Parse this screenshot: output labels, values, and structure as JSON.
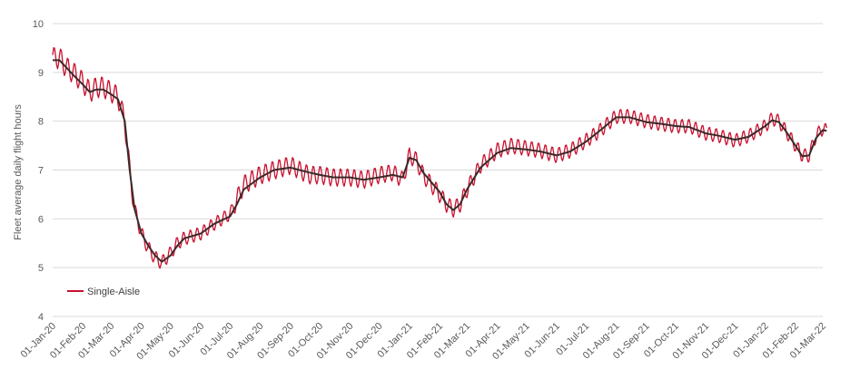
{
  "chart_data": {
    "type": "line",
    "ylabel": "Fleet average daily flight hours",
    "ylim": [
      4,
      10
    ],
    "yticks": [
      4,
      5,
      6,
      7,
      8,
      9,
      10
    ],
    "grid": "horizontal",
    "legend": {
      "position": "bottom-left"
    },
    "x_tick_labels": [
      "01-Jan-20",
      "01-Feb-20",
      "01-Mar-20",
      "01-Apr-20",
      "01-May-20",
      "01-Jun-20",
      "01-Jul-20",
      "01-Aug-20",
      "01-Sep-20",
      "01-Oct-20",
      "01-Nov-20",
      "01-Dec-20",
      "01-Jan-21",
      "01-Feb-21",
      "01-Mar-21",
      "01-Apr-21",
      "01-May-21",
      "01-Jun-21",
      "01-Jul-21",
      "01-Aug-21",
      "01-Sep-21",
      "01-Oct-21",
      "01-Nov-21",
      "01-Dec-21",
      "01-Jan-22",
      "01-Feb-22",
      "01-Mar-22"
    ],
    "series": [
      {
        "name": "Single-Aisle",
        "color": "#c8102e",
        "note": "daily values fluctuate (weekly pattern) around the trend",
        "x": [
          "2020-01-01",
          "2020-01-08",
          "2020-01-15",
          "2020-01-22",
          "2020-02-01",
          "2020-02-08",
          "2020-02-15",
          "2020-02-22",
          "2020-03-01",
          "2020-03-08",
          "2020-03-15",
          "2020-03-20",
          "2020-03-25",
          "2020-04-01",
          "2020-04-08",
          "2020-04-15",
          "2020-04-22",
          "2020-05-01",
          "2020-05-08",
          "2020-05-15",
          "2020-06-01",
          "2020-06-15",
          "2020-07-01",
          "2020-07-08",
          "2020-07-15",
          "2020-08-01",
          "2020-08-15",
          "2020-09-01",
          "2020-09-10",
          "2020-09-20",
          "2020-10-01",
          "2020-10-15",
          "2020-11-01",
          "2020-11-15",
          "2020-12-01",
          "2020-12-15",
          "2020-12-25",
          "2021-01-01",
          "2021-01-08",
          "2021-01-15",
          "2021-02-01",
          "2021-02-08",
          "2021-02-15",
          "2021-02-22",
          "2021-03-01",
          "2021-03-15",
          "2021-04-01",
          "2021-04-15",
          "2021-05-01",
          "2021-05-15",
          "2021-06-01",
          "2021-06-15",
          "2021-07-01",
          "2021-07-15",
          "2021-08-01",
          "2021-08-15",
          "2021-09-01",
          "2021-09-15",
          "2021-10-01",
          "2021-10-15",
          "2021-11-01",
          "2021-11-15",
          "2021-12-01",
          "2021-12-15",
          "2022-01-01",
          "2022-01-08",
          "2022-01-15",
          "2022-01-22",
          "2022-02-01",
          "2022-02-08",
          "2022-02-15",
          "2022-02-22",
          "2022-03-01",
          "2022-03-05"
        ],
        "values": [
          9.3,
          9.3,
          9.1,
          9.0,
          8.8,
          8.6,
          8.7,
          8.7,
          8.6,
          8.5,
          8.0,
          7.0,
          6.2,
          5.7,
          5.4,
          5.2,
          5.1,
          5.3,
          5.5,
          5.6,
          5.7,
          5.9,
          6.1,
          6.4,
          6.7,
          6.9,
          7.0,
          7.1,
          7.0,
          6.9,
          6.9,
          6.85,
          6.85,
          6.8,
          6.9,
          6.95,
          6.8,
          7.3,
          7.2,
          6.9,
          6.5,
          6.3,
          6.2,
          6.3,
          6.6,
          7.1,
          7.4,
          7.5,
          7.45,
          7.4,
          7.3,
          7.4,
          7.6,
          7.8,
          8.1,
          8.1,
          8.0,
          7.95,
          7.9,
          7.9,
          7.75,
          7.7,
          7.6,
          7.7,
          7.9,
          8.05,
          8.0,
          7.8,
          7.5,
          7.3,
          7.3,
          7.7,
          7.85,
          7.8
        ]
      }
    ],
    "trend_line": {
      "color": "#3a2a2a",
      "values": [
        9.25,
        9.25,
        9.1,
        8.95,
        8.75,
        8.6,
        8.65,
        8.65,
        8.55,
        8.45,
        8.0,
        7.0,
        6.2,
        5.7,
        5.45,
        5.25,
        5.12,
        5.25,
        5.45,
        5.6,
        5.7,
        5.9,
        6.05,
        6.3,
        6.6,
        6.85,
        7.0,
        7.05,
        7.0,
        6.95,
        6.9,
        6.85,
        6.85,
        6.8,
        6.85,
        6.9,
        6.85,
        7.25,
        7.2,
        6.95,
        6.55,
        6.3,
        6.18,
        6.3,
        6.6,
        7.05,
        7.35,
        7.45,
        7.42,
        7.38,
        7.3,
        7.38,
        7.58,
        7.8,
        8.08,
        8.08,
        7.98,
        7.95,
        7.9,
        7.88,
        7.75,
        7.7,
        7.62,
        7.68,
        7.9,
        8.02,
        7.98,
        7.8,
        7.5,
        7.28,
        7.3,
        7.65,
        7.82,
        7.8
      ]
    }
  }
}
